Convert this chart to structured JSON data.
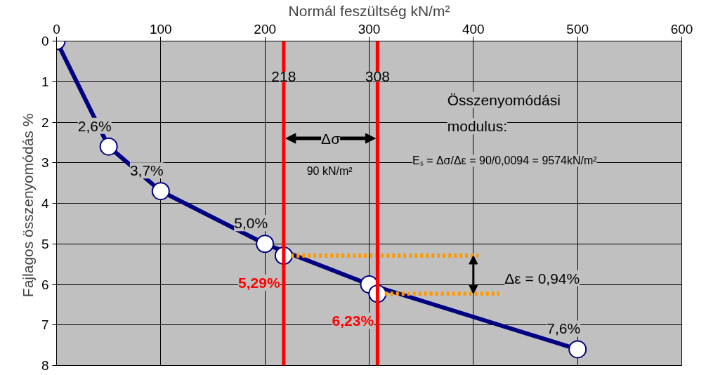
{
  "chart_data": {
    "type": "line",
    "xlabel": "Normál feszültség kN/m²",
    "ylabel": "Fajlagos összenyomódás  %",
    "xlim": [
      0,
      600
    ],
    "xticks": [
      0,
      100,
      200,
      300,
      400,
      500,
      600
    ],
    "ylim": [
      8,
      0
    ],
    "yticks": [
      0,
      1,
      2,
      3,
      4,
      5,
      6,
      7,
      8
    ],
    "grid": true,
    "marker": "circle",
    "series": [
      {
        "color": "#000080",
        "x": [
          0,
          50,
          100,
          200,
          300,
          500
        ],
        "values": [
          0,
          2.6,
          3.7,
          5.0,
          6.0,
          7.6
        ],
        "value_labels": [
          null,
          "2,6%",
          "3,7%",
          "5,0%",
          null,
          "7,6%"
        ]
      },
      {
        "type": "scatter",
        "color": "#000080",
        "x": [
          218,
          308
        ],
        "values": [
          5.29,
          6.23
        ],
        "value_labels": [
          "5,29%",
          "6,23%"
        ]
      },
      {
        "type": "line",
        "color": "#ff9900",
        "line_style": "dotted",
        "marker": "none",
        "x": [
          225,
          405
        ],
        "values": [
          5.29,
          5.29
        ]
      },
      {
        "type": "line",
        "color": "#ff9900",
        "line_style": "dotted",
        "marker": "none",
        "x": [
          315,
          425
        ],
        "values": [
          6.23,
          6.23
        ]
      }
    ],
    "ref_lines": [
      {
        "axis": "x",
        "value": 218,
        "label": "218",
        "color": "#ff0000"
      },
      {
        "axis": "x",
        "value": 308,
        "label": "308",
        "color": "#ff0000"
      }
    ],
    "annotations": [
      {
        "text": "Δσ",
        "x": 263,
        "y": 2.4
      },
      "90 kN/m²",
      "Összenyomódási",
      "modulus:",
      "Eₛ = Δσ/Δε = 90/0,0094 = 9574kN/m²",
      "Δε = 0,94%"
    ]
  }
}
